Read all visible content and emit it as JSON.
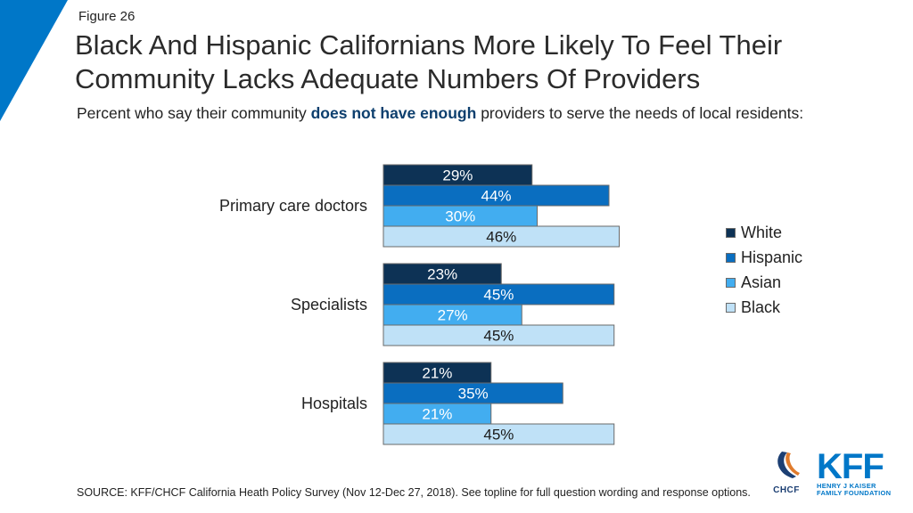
{
  "header": {
    "figure_label": "Figure 26",
    "title": "Black And Hispanic Californians More Likely To Feel Their Community Lacks Adequate Numbers Of Providers",
    "subtitle_pre": "Percent who say their community ",
    "subtitle_highlight": "does not have enough",
    "subtitle_post": " providers to serve the needs of local residents:"
  },
  "colors": {
    "corner": "#0077c8",
    "White": "#0d3255",
    "Hispanic": "#0a6ec0",
    "Asian": "#42adf0",
    "Black": "#bfe1f7",
    "bar_border": "#6a6a6a",
    "label_light": "#ffffff",
    "label_dark": "#1a1a1a",
    "highlight": "#0d3f6e"
  },
  "chart_data": {
    "type": "bar",
    "orientation": "horizontal",
    "categories": [
      "Primary care doctors",
      "Specialists",
      "Hospitals"
    ],
    "series": [
      {
        "name": "White",
        "values": [
          29,
          23,
          21
        ]
      },
      {
        "name": "Hispanic",
        "values": [
          44,
          45,
          35
        ]
      },
      {
        "name": "Asian",
        "values": [
          30,
          27,
          21
        ]
      },
      {
        "name": "Black",
        "values": [
          46,
          45,
          45
        ]
      }
    ],
    "value_suffix": "%",
    "legend_position": "right",
    "grid": false
  },
  "footer": {
    "source": "SOURCE: KFF/CHCF California Heath Policy Survey (Nov 12-Dec 27, 2018). See topline for full question wording and response options.",
    "chcf_logo_text": "CHCF",
    "kff_logo_text": "KFF",
    "kff_logo_sub1": "HENRY J KAISER",
    "kff_logo_sub2": "FAMILY FOUNDATION"
  }
}
